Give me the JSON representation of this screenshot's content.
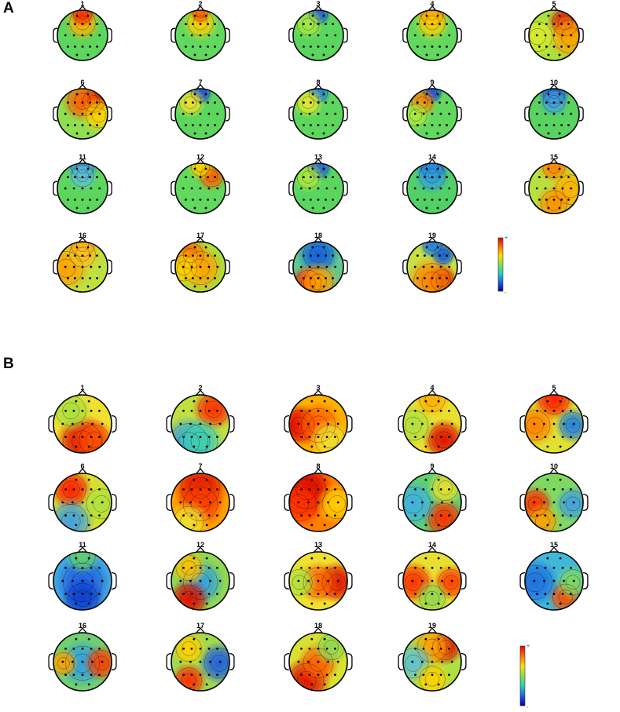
{
  "panels": [
    {
      "letter": "A",
      "maps": [
        {
          "label": "1",
          "bg": "#5cd65c",
          "blobs": [
            {
              "p": "frontal",
              "c": "#ffb000",
              "s": 0.35
            },
            {
              "p": "front-edge",
              "c": "#ff3000",
              "s": 0.25
            }
          ]
        },
        {
          "label": "2",
          "bg": "#62d85f",
          "blobs": [
            {
              "p": "frontal",
              "c": "#ffd000",
              "s": 0.35
            },
            {
              "p": "front-edge",
              "c": "#ff6000",
              "s": 0.2
            }
          ]
        },
        {
          "label": "3",
          "bg": "#5ad65e",
          "blobs": [
            {
              "p": "front-edge",
              "c": "#2060e0",
              "s": 0.25
            },
            {
              "p": "left-frontal",
              "c": "#a8e840",
              "s": 0.3
            }
          ]
        },
        {
          "label": "4",
          "bg": "#62d85f",
          "blobs": [
            {
              "p": "front-edge",
              "c": "#ff4000",
              "s": 0.3
            },
            {
              "p": "frontal",
              "c": "#ffd000",
              "s": 0.35
            }
          ]
        },
        {
          "label": "5",
          "bg": "#a8e040",
          "blobs": [
            {
              "p": "right-frontal",
              "c": "#e01010",
              "s": 0.35
            },
            {
              "p": "right",
              "c": "#ffa000",
              "s": 0.45
            },
            {
              "p": "left",
              "c": "#d8e830",
              "s": 0.4
            }
          ]
        },
        {
          "label": "6",
          "bg": "#8ee050",
          "blobs": [
            {
              "p": "right-frontal",
              "c": "#d00000",
              "s": 0.3
            },
            {
              "p": "frontal",
              "c": "#ff6000",
              "s": 0.4
            },
            {
              "p": "right",
              "c": "#ffd000",
              "s": 0.35
            }
          ]
        },
        {
          "label": "7",
          "bg": "#5cd65c",
          "blobs": [
            {
              "p": "front-edge",
              "c": "#2050e0",
              "s": 0.25
            },
            {
              "p": "left-frontal",
              "c": "#f0e030",
              "s": 0.3
            }
          ]
        },
        {
          "label": "8",
          "bg": "#5cd65c",
          "blobs": [
            {
              "p": "front-edge",
              "c": "#2080e0",
              "s": 0.25
            },
            {
              "p": "left-frontal",
              "c": "#e8e830",
              "s": 0.3
            }
          ]
        },
        {
          "label": "9",
          "bg": "#62d85f",
          "blobs": [
            {
              "p": "front-edge",
              "c": "#2050e0",
              "s": 0.22
            },
            {
              "p": "left-frontal",
              "c": "#ff8000",
              "s": 0.28
            },
            {
              "p": "left",
              "c": "#b0e840",
              "s": 0.3
            }
          ]
        },
        {
          "label": "10",
          "bg": "#58d360",
          "blobs": [
            {
              "p": "front-edge",
              "c": "#1040d0",
              "s": 0.3
            },
            {
              "p": "frontal",
              "c": "#40a0e0",
              "s": 0.3
            }
          ]
        },
        {
          "label": "11",
          "bg": "#5cd65c",
          "blobs": [
            {
              "p": "front-edge",
              "c": "#2070e0",
              "s": 0.3
            },
            {
              "p": "frontal",
              "c": "#60c0d0",
              "s": 0.3
            }
          ]
        },
        {
          "label": "12",
          "bg": "#62d85f",
          "blobs": [
            {
              "p": "right-frontal",
              "c": "#ff6000",
              "s": 0.3
            },
            {
              "p": "front-edge",
              "c": "#ffd000",
              "s": 0.25
            }
          ]
        },
        {
          "label": "13",
          "bg": "#5ad65e",
          "blobs": [
            {
              "p": "front-edge",
              "c": "#2060e0",
              "s": 0.28
            },
            {
              "p": "left-frontal",
              "c": "#b0e840",
              "s": 0.3
            }
          ]
        },
        {
          "label": "14",
          "bg": "#52d068",
          "blobs": [
            {
              "p": "front-edge",
              "c": "#1040d0",
              "s": 0.3
            },
            {
              "p": "frontal",
              "c": "#30a0e0",
              "s": 0.35
            }
          ]
        },
        {
          "label": "15",
          "bg": "#b8e040",
          "blobs": [
            {
              "p": "front-edge",
              "c": "#ff8000",
              "s": 0.3
            },
            {
              "p": "right",
              "c": "#ffb000",
              "s": 0.4
            },
            {
              "p": "back",
              "c": "#ff9000",
              "s": 0.35
            }
          ]
        },
        {
          "label": "16",
          "bg": "#c0e040",
          "blobs": [
            {
              "p": "front-edge",
              "c": "#ff8000",
              "s": 0.3
            },
            {
              "p": "left",
              "c": "#ffa000",
              "s": 0.45
            },
            {
              "p": "frontal",
              "c": "#f8c020",
              "s": 0.35
            }
          ]
        },
        {
          "label": "17",
          "bg": "#a8e040",
          "blobs": [
            {
              "p": "left-frontal",
              "c": "#ff6000",
              "s": 0.35
            },
            {
              "p": "center",
              "c": "#ffa000",
              "s": 0.45
            },
            {
              "p": "left",
              "c": "#ffd000",
              "s": 0.35
            }
          ]
        },
        {
          "label": "18",
          "bg": "#60c890",
          "blobs": [
            {
              "p": "frontal",
              "c": "#1060e0",
              "s": 0.4
            },
            {
              "p": "back-left",
              "c": "#ff2000",
              "s": 0.35
            },
            {
              "p": "back",
              "c": "#ffa000",
              "s": 0.4
            }
          ]
        },
        {
          "label": "19",
          "bg": "#c8e040",
          "blobs": [
            {
              "p": "right-back",
              "c": "#d00000",
              "s": 0.3
            },
            {
              "p": "back",
              "c": "#ff8000",
              "s": 0.5
            },
            {
              "p": "right-frontal",
              "c": "#1060e0",
              "s": 0.25
            },
            {
              "p": "front-edge",
              "c": "#2080e0",
              "s": 0.25
            }
          ]
        }
      ],
      "scale_plus": "+",
      "scale_minus": "-"
    },
    {
      "letter": "B",
      "maps": [
        {
          "label": "1",
          "bg": "#f0e030",
          "blobs": [
            {
              "p": "back",
              "c": "#e01000",
              "s": 0.45
            },
            {
              "p": "left-frontal",
              "c": "#a8e040",
              "s": 0.35
            },
            {
              "p": "right-back",
              "c": "#ff5000",
              "s": 0.35
            }
          ]
        },
        {
          "label": "2",
          "bg": "#c0e040",
          "blobs": [
            {
              "p": "right-frontal",
              "c": "#ff3000",
              "s": 0.35
            },
            {
              "p": "back-left",
              "c": "#30a0e0",
              "s": 0.45
            },
            {
              "p": "back",
              "c": "#40d0b0",
              "s": 0.4
            }
          ]
        },
        {
          "label": "3",
          "bg": "#ffb000",
          "blobs": [
            {
              "p": "left",
              "c": "#e00000",
              "s": 0.35
            },
            {
              "p": "center",
              "c": "#ff6000",
              "s": 0.4
            },
            {
              "p": "right-back",
              "c": "#f0e030",
              "s": 0.35
            }
          ]
        },
        {
          "label": "4",
          "bg": "#e8e030",
          "blobs": [
            {
              "p": "right-back",
              "c": "#e01000",
              "s": 0.35
            },
            {
              "p": "left",
              "c": "#b0e040",
              "s": 0.35
            },
            {
              "p": "front-edge",
              "c": "#ffb000",
              "s": 0.3
            }
          ]
        },
        {
          "label": "5",
          "bg": "#e0e030",
          "blobs": [
            {
              "p": "front-edge",
              "c": "#ff2000",
              "s": 0.35
            },
            {
              "p": "right",
              "c": "#2080e0",
              "s": 0.3
            },
            {
              "p": "left",
              "c": "#ff8000",
              "s": 0.35
            }
          ]
        },
        {
          "label": "6",
          "bg": "#d8e030",
          "blobs": [
            {
              "p": "left-frontal",
              "c": "#ff2000",
              "s": 0.35
            },
            {
              "p": "back-left",
              "c": "#40a0e0",
              "s": 0.4
            },
            {
              "p": "right",
              "c": "#b0e040",
              "s": 0.35
            }
          ]
        },
        {
          "label": "7",
          "bg": "#ffa000",
          "blobs": [
            {
              "p": "frontal",
              "c": "#e01000",
              "s": 0.45
            },
            {
              "p": "center",
              "c": "#ff4000",
              "s": 0.4
            },
            {
              "p": "back-left",
              "c": "#f0e030",
              "s": 0.35
            }
          ]
        },
        {
          "label": "8",
          "bg": "#ff8000",
          "blobs": [
            {
              "p": "left-frontal",
              "c": "#d80000",
              "s": 0.45
            },
            {
              "p": "left",
              "c": "#ff3000",
              "s": 0.4
            },
            {
              "p": "right",
              "c": "#ffd000",
              "s": 0.35
            }
          ]
        },
        {
          "label": "9",
          "bg": "#60d070",
          "blobs": [
            {
              "p": "right-back",
              "c": "#ff3000",
              "s": 0.35
            },
            {
              "p": "left",
              "c": "#40b0e0",
              "s": 0.4
            },
            {
              "p": "right-frontal",
              "c": "#e8e030",
              "s": 0.3
            }
          ]
        },
        {
          "label": "10",
          "bg": "#80d860",
          "blobs": [
            {
              "p": "left",
              "c": "#ff3000",
              "s": 0.3
            },
            {
              "p": "back-left",
              "c": "#ffa000",
              "s": 0.3
            },
            {
              "p": "right",
              "c": "#40a0e0",
              "s": 0.3
            }
          ]
        },
        {
          "label": "11",
          "bg": "#40a8e0",
          "blobs": [
            {
              "p": "center",
              "c": "#2060e0",
              "s": 0.45
            },
            {
              "p": "front-edge",
              "c": "#60d070",
              "s": 0.3
            },
            {
              "p": "back",
              "c": "#1040d0",
              "s": 0.35
            }
          ]
        },
        {
          "label": "12",
          "bg": "#90d850",
          "blobs": [
            {
              "p": "center",
              "c": "#30a0e0",
              "s": 0.4
            },
            {
              "p": "back-left",
              "c": "#e01000",
              "s": 0.35
            },
            {
              "p": "left-frontal",
              "c": "#ffc000",
              "s": 0.3
            }
          ]
        },
        {
          "label": "13",
          "bg": "#f0e030",
          "blobs": [
            {
              "p": "right",
              "c": "#e01000",
              "s": 0.35
            },
            {
              "p": "center",
              "c": "#ff6000",
              "s": 0.35
            },
            {
              "p": "left",
              "c": "#b0e040",
              "s": 0.3
            }
          ]
        },
        {
          "label": "14",
          "bg": "#e8e030",
          "blobs": [
            {
              "p": "left",
              "c": "#ff3000",
              "s": 0.35
            },
            {
              "p": "right",
              "c": "#ff4000",
              "s": 0.3
            },
            {
              "p": "back",
              "c": "#90d850",
              "s": 0.3
            }
          ]
        },
        {
          "label": "15",
          "bg": "#40b8d8",
          "blobs": [
            {
              "p": "right-back",
              "c": "#ff5000",
              "s": 0.3
            },
            {
              "p": "left",
              "c": "#2070e0",
              "s": 0.4
            },
            {
              "p": "right",
              "c": "#80d860",
              "s": 0.3
            }
          ]
        },
        {
          "label": "16",
          "bg": "#70d070",
          "blobs": [
            {
              "p": "center",
              "c": "#30a0e0",
              "s": 0.4
            },
            {
              "p": "right",
              "c": "#ff4000",
              "s": 0.3
            },
            {
              "p": "left",
              "c": "#ffa000",
              "s": 0.25
            }
          ]
        },
        {
          "label": "17",
          "bg": "#a0d850",
          "blobs": [
            {
              "p": "right",
              "c": "#2060e0",
              "s": 0.35
            },
            {
              "p": "back-left",
              "c": "#ff3000",
              "s": 0.3
            },
            {
              "p": "left-frontal",
              "c": "#ffd000",
              "s": 0.3
            }
          ]
        },
        {
          "label": "18",
          "bg": "#d8e030",
          "blobs": [
            {
              "p": "back-left",
              "c": "#e01000",
              "s": 0.4
            },
            {
              "p": "center",
              "c": "#ff6000",
              "s": 0.35
            },
            {
              "p": "right-frontal",
              "c": "#90d850",
              "s": 0.3
            }
          ]
        },
        {
          "label": "19",
          "bg": "#b0e040",
          "blobs": [
            {
              "p": "right-frontal",
              "c": "#e01000",
              "s": 0.3
            },
            {
              "p": "frontal",
              "c": "#ffa000",
              "s": 0.35
            },
            {
              "p": "left",
              "c": "#60c0d0",
              "s": 0.35
            },
            {
              "p": "back",
              "c": "#ffd000",
              "s": 0.3
            }
          ]
        }
      ],
      "scale_plus": "+",
      "scale_minus": "-"
    }
  ],
  "colorscale": [
    "#e00000",
    "#ff7000",
    "#ffe000",
    "#80e040",
    "#20d0c0",
    "#2060e0",
    "#0000a0"
  ]
}
